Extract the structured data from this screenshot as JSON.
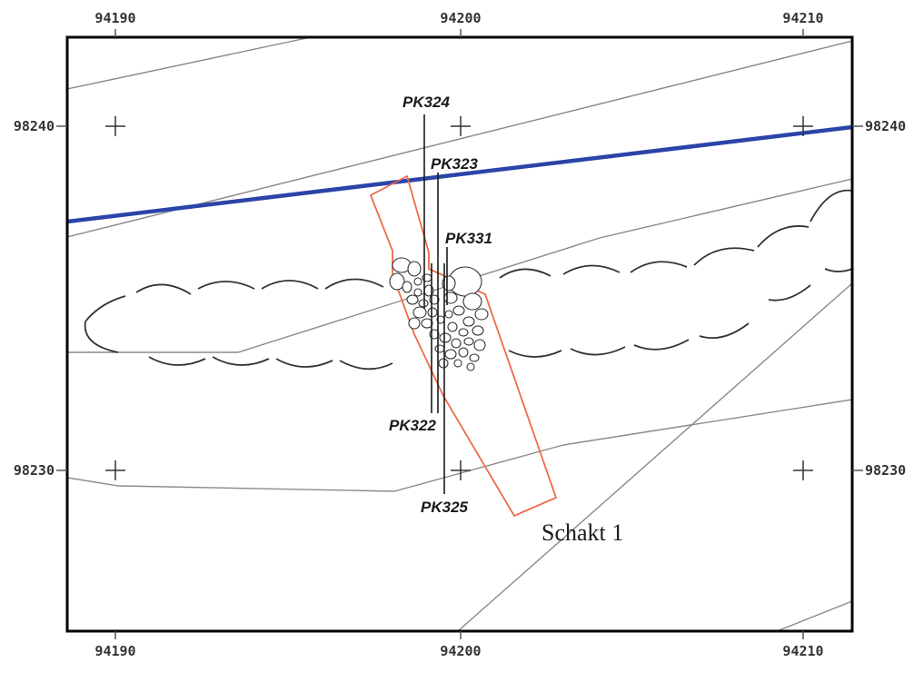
{
  "map": {
    "frame_labels": {
      "x_top": [
        "94190",
        "94200",
        "94210"
      ],
      "x_bottom": [
        "94190",
        "94200",
        "94210"
      ],
      "y_left": [
        "98240",
        "98230"
      ],
      "y_right": [
        "98240",
        "98230"
      ]
    },
    "profiles": [
      {
        "id": "pk324",
        "label": "PK324"
      },
      {
        "id": "pk323",
        "label": "PK323"
      },
      {
        "id": "pk331",
        "label": "PK331"
      },
      {
        "id": "pk322",
        "label": "PK322"
      },
      {
        "id": "pk325",
        "label": "PK325"
      }
    ],
    "trench_label": "Schakt 1",
    "colors": {
      "frame": "#000000",
      "grid_cross": "#333333",
      "thin_line": "#8a8a8a",
      "blue_line": "#2a44a8",
      "trench_outline": "#ef6a4a",
      "stone_outline": "#333333",
      "arc": "#333333"
    }
  }
}
